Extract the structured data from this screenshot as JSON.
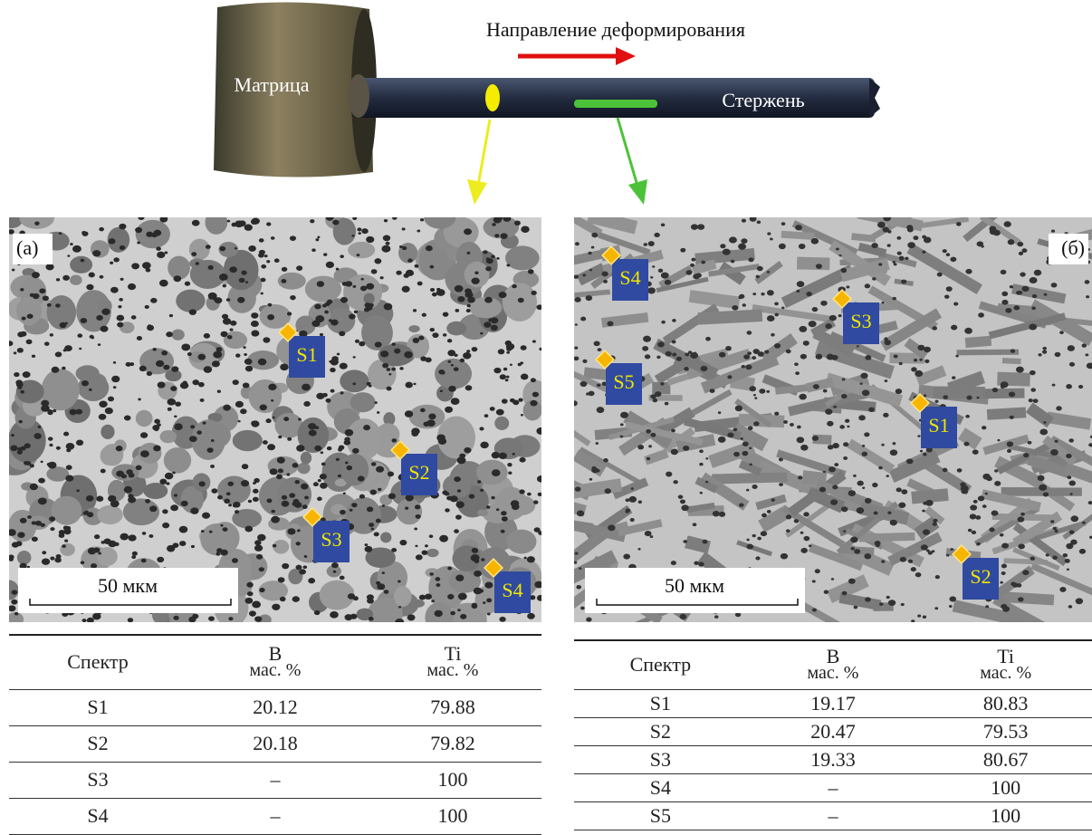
{
  "header": {
    "direction": "Направление деформирования",
    "matrix": "Матрица",
    "rod": "Стержень"
  },
  "panels": [
    {
      "label": "(а)",
      "scale": "50 мкм",
      "markers": [
        "S1",
        "S2",
        "S3",
        "S4"
      ],
      "table": {
        "columns": [
          {
            "name": "Спектр"
          },
          {
            "name": "B",
            "unit": "мас. %"
          },
          {
            "name": "Ti",
            "unit": "мас. %"
          }
        ],
        "rows": [
          [
            "S1",
            20.12,
            79.88
          ],
          [
            "S2",
            20.18,
            79.82
          ],
          [
            "S3",
            "–",
            100
          ],
          [
            "S4",
            "–",
            100
          ]
        ]
      }
    },
    {
      "label": "(б)",
      "scale": "50 мкм",
      "markers": [
        "S4",
        "S3",
        "S5",
        "S1",
        "S2"
      ],
      "table": {
        "columns": [
          {
            "name": "Спектр"
          },
          {
            "name": "B",
            "unit": "мас. %"
          },
          {
            "name": "Ti",
            "unit": "мас. %"
          }
        ],
        "rows": [
          [
            "S1",
            19.17,
            80.83
          ],
          [
            "S2",
            20.47,
            79.53
          ],
          [
            "S3",
            19.33,
            80.67
          ],
          [
            "S4",
            "–",
            100
          ],
          [
            "S5",
            "–",
            100
          ]
        ]
      }
    }
  ]
}
